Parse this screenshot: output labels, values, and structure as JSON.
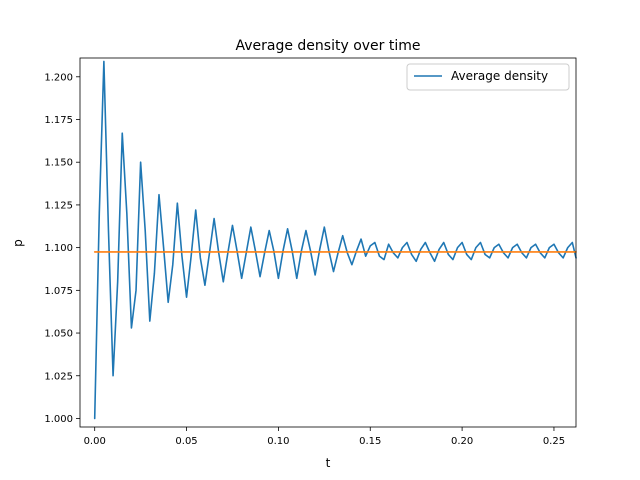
{
  "chart_data": {
    "type": "line",
    "title": "Average density over time",
    "xlabel": "t",
    "ylabel": "p",
    "xlim": [
      -0.008,
      0.262
    ],
    "ylim": [
      0.995,
      1.211
    ],
    "xticks": [
      0.0,
      0.05,
      0.1,
      0.15,
      0.2,
      0.25
    ],
    "xtick_labels": [
      "0.00",
      "0.05",
      "0.10",
      "0.15",
      "0.20",
      "0.25"
    ],
    "yticks": [
      1.0,
      1.025,
      1.05,
      1.075,
      1.1,
      1.125,
      1.15,
      1.175,
      1.2
    ],
    "ytick_labels": [
      "1.000",
      "1.025",
      "1.050",
      "1.075",
      "1.100",
      "1.125",
      "1.150",
      "1.175",
      "1.200"
    ],
    "grid": false,
    "legend": {
      "position": "top-right",
      "entries": [
        "Average density"
      ]
    },
    "series": [
      {
        "name": "Average density",
        "color": "#1f77b4",
        "x": [
          0.0,
          0.0025,
          0.005,
          0.0075,
          0.01,
          0.0125,
          0.015,
          0.0175,
          0.02,
          0.0225,
          0.025,
          0.0275,
          0.03,
          0.0325,
          0.035,
          0.0375,
          0.04,
          0.0425,
          0.045,
          0.0475,
          0.05,
          0.0525,
          0.055,
          0.0575,
          0.06,
          0.0625,
          0.065,
          0.0675,
          0.07,
          0.0725,
          0.075,
          0.0775,
          0.08,
          0.0825,
          0.085,
          0.0875,
          0.09,
          0.0925,
          0.095,
          0.0975,
          0.1,
          0.1025,
          0.105,
          0.1075,
          0.11,
          0.1125,
          0.115,
          0.1175,
          0.12,
          0.1225,
          0.125,
          0.1275,
          0.13,
          0.1325,
          0.135,
          0.1375,
          0.14,
          0.1425,
          0.145,
          0.1475,
          0.15,
          0.1525,
          0.155,
          0.1575,
          0.16,
          0.1625,
          0.165,
          0.1675,
          0.17,
          0.1725,
          0.175,
          0.1775,
          0.18,
          0.1825,
          0.185,
          0.1875,
          0.19,
          0.1925,
          0.195,
          0.1975,
          0.2,
          0.2025,
          0.205,
          0.2075,
          0.21,
          0.2125,
          0.215,
          0.2175,
          0.22,
          0.2225,
          0.225,
          0.2275,
          0.23,
          0.2325,
          0.235,
          0.2375,
          0.24,
          0.2425,
          0.245,
          0.2475,
          0.25,
          0.2525,
          0.255,
          0.2575,
          0.26,
          0.262
        ],
        "y": [
          1.0,
          1.12,
          1.209,
          1.11,
          1.025,
          1.08,
          1.167,
          1.12,
          1.053,
          1.075,
          1.15,
          1.11,
          1.057,
          1.085,
          1.131,
          1.1,
          1.068,
          1.09,
          1.126,
          1.095,
          1.071,
          1.095,
          1.122,
          1.094,
          1.078,
          1.097,
          1.117,
          1.097,
          1.08,
          1.097,
          1.113,
          1.098,
          1.082,
          1.097,
          1.112,
          1.098,
          1.083,
          1.097,
          1.11,
          1.098,
          1.082,
          1.098,
          1.111,
          1.098,
          1.082,
          1.098,
          1.11,
          1.098,
          1.084,
          1.099,
          1.112,
          1.098,
          1.086,
          1.097,
          1.107,
          1.097,
          1.09,
          1.098,
          1.105,
          1.095,
          1.101,
          1.103,
          1.095,
          1.093,
          1.102,
          1.097,
          1.094,
          1.1,
          1.103,
          1.096,
          1.092,
          1.099,
          1.103,
          1.097,
          1.092,
          1.099,
          1.103,
          1.096,
          1.093,
          1.1,
          1.103,
          1.096,
          1.093,
          1.1,
          1.103,
          1.096,
          1.094,
          1.1,
          1.102,
          1.097,
          1.094,
          1.1,
          1.102,
          1.097,
          1.094,
          1.1,
          1.102,
          1.097,
          1.094,
          1.1,
          1.102,
          1.097,
          1.094,
          1.1,
          1.103,
          1.094
        ]
      },
      {
        "name": "",
        "color": "#ff7f0e",
        "x": [
          0.0,
          0.262
        ],
        "y": [
          1.0975,
          1.0975
        ]
      }
    ]
  }
}
